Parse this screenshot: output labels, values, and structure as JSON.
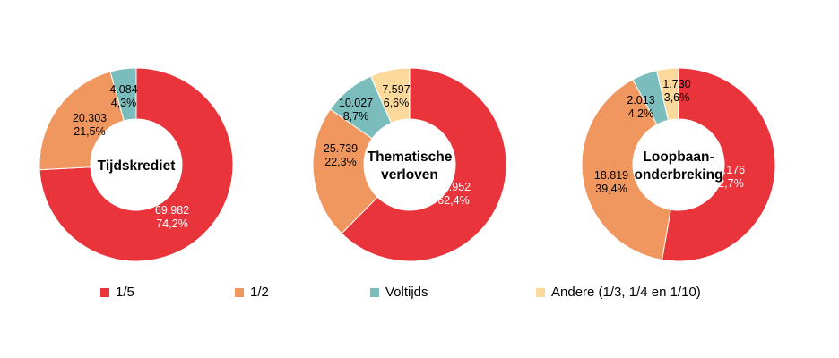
{
  "chart_data": [
    {
      "type": "pie",
      "donut": true,
      "title": "Tijdskrediet",
      "categories": [
        "1/5",
        "1/2",
        "Voltijds"
      ],
      "values": [
        69982,
        20303,
        4084
      ],
      "value_labels": [
        "69.982",
        "20.303",
        "4.084"
      ],
      "percent_labels": [
        "74,2%",
        "21,5%",
        "4,3%"
      ]
    },
    {
      "type": "pie",
      "donut": true,
      "title": "Thematische verloven",
      "title_lines": [
        "Thematische",
        "verloven"
      ],
      "categories": [
        "1/5",
        "1/2",
        "Voltijds",
        "Andere (1/3, 1/4 en 1/10)"
      ],
      "values": [
        71952,
        25739,
        10027,
        7597
      ],
      "value_labels": [
        "71.952",
        "25.739",
        "10.027",
        "7.597"
      ],
      "percent_labels": [
        "62,4%",
        "22,3%",
        "8,7%",
        "6,6%"
      ]
    },
    {
      "type": "pie",
      "donut": true,
      "title": "Loopbaan-onderbreking",
      "title_lines": [
        "Loopbaan-",
        "onderbreking"
      ],
      "categories": [
        "1/5",
        "1/2",
        "Voltijds",
        "Andere (1/3, 1/4 en 1/10)"
      ],
      "values": [
        25176,
        18819,
        2013,
        1730
      ],
      "value_labels": [
        "25.176",
        "18.819",
        "2.013",
        "1.730"
      ],
      "percent_labels": [
        "52,7%",
        "39,4%",
        "4,2%",
        "3,6%"
      ]
    }
  ],
  "legend": [
    {
      "label": "1/5",
      "color": "#e8343a"
    },
    {
      "label": "1/2",
      "color": "#f0975f"
    },
    {
      "label": "Voltijds",
      "color": "#7bbdbd"
    },
    {
      "label": "Andere (1/3, 1/4 en 1/10)",
      "color": "#fbd99b"
    }
  ],
  "legend_position": "bottom"
}
